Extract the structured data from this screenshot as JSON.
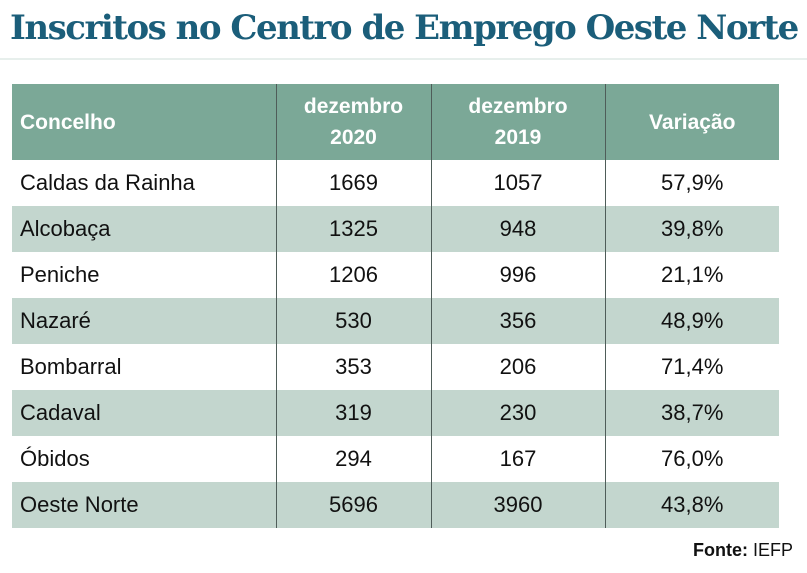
{
  "title": "Inscritos no Centro de Emprego Oeste Norte",
  "source_label": "Fonte:",
  "source_value": "IEFP",
  "chart_data": {
    "type": "table",
    "title": "Inscritos no Centro de Emprego Oeste Norte",
    "columns": [
      {
        "line1": "Concelho",
        "line2": ""
      },
      {
        "line1": "dezembro",
        "line2": "2020"
      },
      {
        "line1": "dezembro",
        "line2": "2019"
      },
      {
        "line1": "Variação",
        "line2": ""
      }
    ],
    "rows": [
      [
        "Caldas da Rainha",
        "1669",
        "1057",
        "57,9%"
      ],
      [
        "Alcobaça",
        "1325",
        "948",
        "39,8%"
      ],
      [
        "Peniche",
        "1206",
        "996",
        "21,1%"
      ],
      [
        "Nazaré",
        "530",
        "356",
        "48,9%"
      ],
      [
        "Bombarral",
        "353",
        "206",
        "71,4%"
      ],
      [
        "Cadaval",
        "319",
        "230",
        "38,7%"
      ],
      [
        "Óbidos",
        "294",
        "167",
        "76,0%"
      ],
      [
        "Oeste Norte",
        "5696",
        "3960",
        "43,8%"
      ]
    ],
    "colors": {
      "header": "#7ba897",
      "band": "#c3d6ce",
      "title": "#1b5e7a"
    }
  }
}
